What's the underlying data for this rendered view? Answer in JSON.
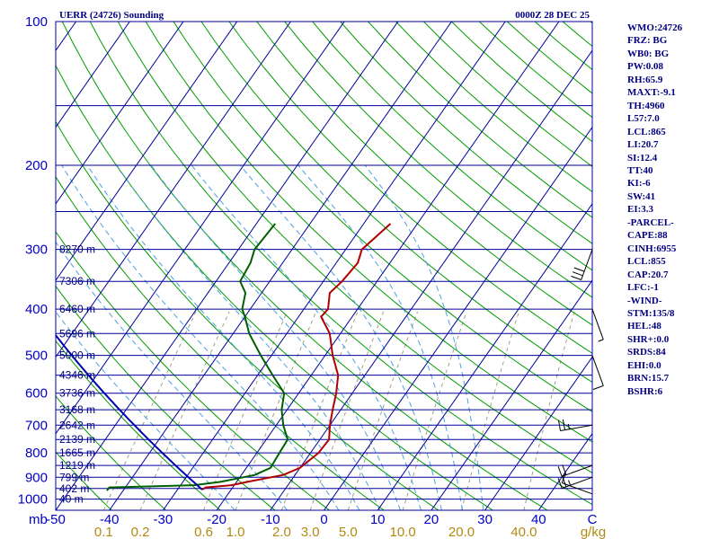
{
  "header": {
    "station": "UERR (24726) Sounding",
    "time": "0000Z 28 DEC 25"
  },
  "indices": [
    "WMO:24726",
    "FRZ: BG",
    "WB0: BG",
    "PW:0.08",
    "RH:65.9",
    "MAXT:-9.1",
    "TH:4960",
    "L57:7.0",
    "LCL:865",
    "LI:20.7",
    "SI:12.4",
    "TT:40",
    "KI:-6",
    "SW:41",
    "EI:3.3",
    "-PARCEL-",
    "CAPE:88",
    "CINH:6955",
    "LCL:855",
    "CAP:20.7",
    "LFC:-1",
    "-WIND-",
    "STM:135/8",
    "HEL:48",
    "SHR+:0.0",
    "SRDS:84",
    "EHI:0.0",
    "BRN:15.7",
    "BSHR:6"
  ],
  "colors": {
    "isobar": "#00009c",
    "isotherm": "#00009c",
    "dry_adiabat": "#009c00",
    "moist_adiabat": "#4aa0e0",
    "mixing_ratio": "#a0a080",
    "temperature": "#b00000",
    "dewpoint": "#006000",
    "parcel": "#0000b0",
    "wind_barb": "#000000"
  },
  "chart_data": {
    "type": "skew-t",
    "p_unit": "mb",
    "t_unit": "C",
    "mixing_ratio_unit": "g/kg",
    "p_range": [
      1000,
      100
    ],
    "t_range": [
      -50,
      50
    ],
    "pressure_labels": [
      "1000",
      "900",
      "800",
      "700",
      "600",
      "500",
      "400",
      "300",
      "200",
      "100"
    ],
    "temperature_labels": [
      "-50",
      "-40",
      "-30",
      "-20",
      "-10",
      "0",
      "10",
      "20",
      "30",
      "40",
      "C"
    ],
    "mixing_ratio_labels": [
      "0.1",
      "0.2",
      "0.6",
      "1.0",
      "2.0",
      "3.0",
      "5.0",
      "10.0",
      "20.0",
      "40.0"
    ],
    "height_labels": [
      {
        "p": 300,
        "label": "8270 m"
      },
      {
        "p": 350,
        "label": "7306 m"
      },
      {
        "p": 400,
        "label": "6460 m"
      },
      {
        "p": 450,
        "label": "5696 m"
      },
      {
        "p": 500,
        "label": "5000 m"
      },
      {
        "p": 550,
        "label": "4346 m"
      },
      {
        "p": 600,
        "label": "3736 m"
      },
      {
        "p": 650,
        "label": "3168 m"
      },
      {
        "p": 700,
        "label": "2642 m"
      },
      {
        "p": 750,
        "label": "2139 m"
      },
      {
        "p": 800,
        "label": "1665 m"
      },
      {
        "p": 850,
        "label": "1219 m"
      },
      {
        "p": 900,
        "label": "799 m"
      },
      {
        "p": 950,
        "label": "402 m"
      },
      {
        "p": 1000,
        "label": "40 m"
      }
    ],
    "temperature_profile": [
      {
        "p": 955,
        "t": -25.4
      },
      {
        "p": 945,
        "t": -25.0
      },
      {
        "p": 935,
        "t": -20.5
      },
      {
        "p": 920,
        "t": -18.0
      },
      {
        "p": 890,
        "t": -12.2
      },
      {
        "p": 860,
        "t": -10.0
      },
      {
        "p": 800,
        "t": -8.5
      },
      {
        "p": 750,
        "t": -8.3
      },
      {
        "p": 700,
        "t": -10.0
      },
      {
        "p": 650,
        "t": -11.5
      },
      {
        "p": 600,
        "t": -13.0
      },
      {
        "p": 550,
        "t": -15.0
      },
      {
        "p": 500,
        "t": -18.6
      },
      {
        "p": 450,
        "t": -22.0
      },
      {
        "p": 415,
        "t": -25.8
      },
      {
        "p": 400,
        "t": -25.5
      },
      {
        "p": 370,
        "t": -27.3
      },
      {
        "p": 350,
        "t": -26.5
      },
      {
        "p": 320,
        "t": -26.0
      },
      {
        "p": 300,
        "t": -27.0
      },
      {
        "p": 265,
        "t": -25.0
      }
    ],
    "dewpoint_profile": [
      {
        "p": 960,
        "t": -43.0
      },
      {
        "p": 945,
        "t": -43.0
      },
      {
        "p": 935,
        "t": -27.5
      },
      {
        "p": 920,
        "t": -23.0
      },
      {
        "p": 890,
        "t": -17.5
      },
      {
        "p": 860,
        "t": -15.5
      },
      {
        "p": 800,
        "t": -15.8
      },
      {
        "p": 750,
        "t": -16.0
      },
      {
        "p": 700,
        "t": -18.7
      },
      {
        "p": 650,
        "t": -21.0
      },
      {
        "p": 600,
        "t": -22.7
      },
      {
        "p": 550,
        "t": -27.2
      },
      {
        "p": 500,
        "t": -32.0
      },
      {
        "p": 450,
        "t": -37.0
      },
      {
        "p": 415,
        "t": -40.0
      },
      {
        "p": 400,
        "t": -41.5
      },
      {
        "p": 370,
        "t": -43.0
      },
      {
        "p": 350,
        "t": -45.5
      },
      {
        "p": 320,
        "t": -46.0
      },
      {
        "p": 300,
        "t": -47.0
      },
      {
        "p": 265,
        "t": -46.5
      }
    ],
    "wind_barbs": [
      {
        "p": 975,
        "dir": 290,
        "spd": 10
      },
      {
        "p": 900,
        "dir": 250,
        "spd": 25
      },
      {
        "p": 850,
        "dir": 250,
        "spd": 20
      },
      {
        "p": 700,
        "dir": 260,
        "spd": 25
      },
      {
        "p": 500,
        "dir": 160,
        "spd": 10
      },
      {
        "p": 400,
        "dir": 160,
        "spd": 5
      },
      {
        "p": 300,
        "dir": 200,
        "spd": 30
      }
    ]
  }
}
